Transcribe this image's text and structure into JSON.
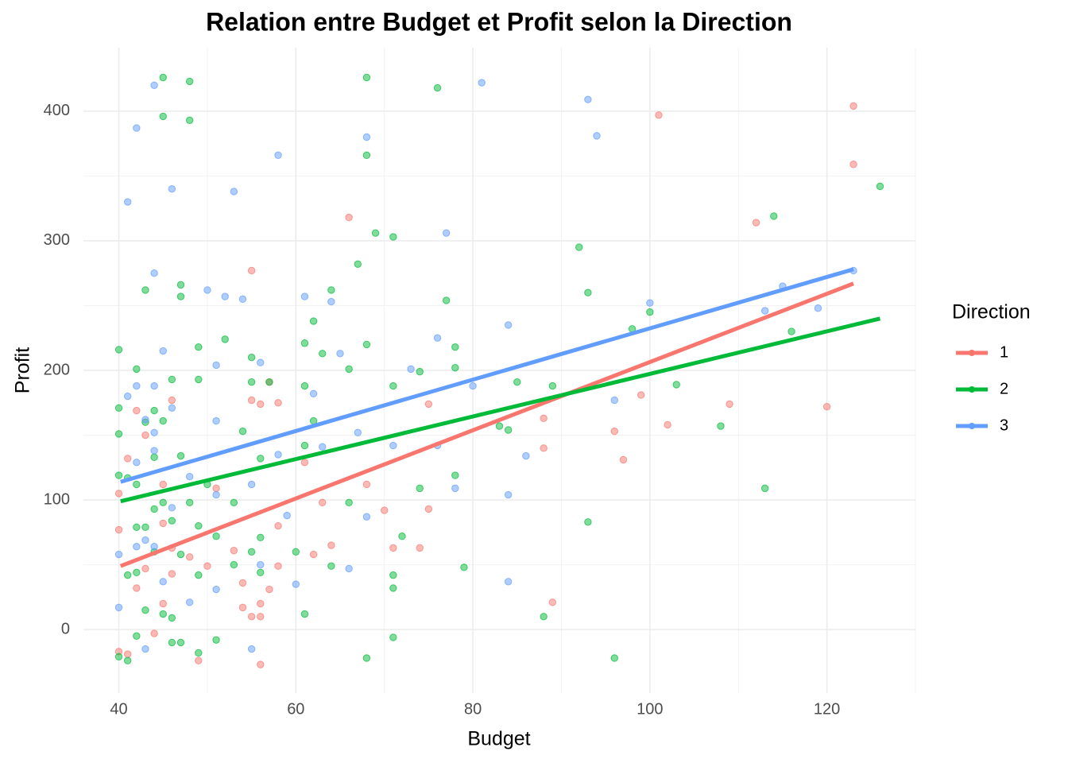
{
  "chart_data": {
    "type": "scatter",
    "title": "Relation entre Budget et Profit selon la Direction",
    "x_label": "Budget",
    "y_label": "Profit",
    "legend_title": "Direction",
    "xlim": [
      36,
      130
    ],
    "ylim": [
      -49,
      449
    ],
    "xticks": [
      40,
      60,
      80,
      100,
      120
    ],
    "yticks": [
      0,
      100,
      200,
      300,
      400
    ],
    "grid": true,
    "legend": "right",
    "series": [
      {
        "name": "1",
        "color": "#F8766D",
        "x": [
          40,
          40,
          40,
          41,
          41,
          42,
          42,
          43,
          43,
          44,
          45,
          45,
          45,
          46,
          46,
          46,
          48,
          49,
          50,
          51,
          53,
          54,
          54,
          55,
          55,
          55,
          56,
          56,
          56,
          56,
          57,
          57,
          58,
          58,
          58,
          61,
          62,
          63,
          64,
          66,
          68,
          70,
          71,
          74,
          75,
          75,
          89,
          88,
          88,
          96,
          97,
          99,
          101,
          102,
          109,
          112,
          120,
          123,
          123
        ],
        "y": [
          105,
          77,
          -17,
          132,
          -19,
          32,
          169,
          47,
          150,
          -3,
          20,
          112,
          82,
          177,
          63,
          43,
          56,
          -24,
          49,
          109,
          61,
          36,
          17,
          277,
          177,
          10,
          20,
          10,
          -27,
          174,
          191,
          31,
          175,
          80,
          49,
          129,
          58,
          98,
          65,
          318,
          112,
          92,
          63,
          63,
          93,
          174,
          21,
          163,
          140,
          153,
          131,
          181,
          397,
          158,
          174,
          314,
          172,
          404,
          359
        ],
        "trend": {
          "x": [
            40.2,
            123
          ],
          "y": [
            49,
            267
          ]
        }
      },
      {
        "name": "2",
        "color": "#00BA38",
        "x": [
          40,
          40,
          40,
          40,
          40,
          41,
          41,
          41,
          42,
          42,
          42,
          42,
          42,
          43,
          43,
          43,
          43,
          44,
          44,
          44,
          44,
          45,
          45,
          45,
          45,
          45,
          46,
          46,
          46,
          46,
          47,
          47,
          47,
          47,
          47,
          48,
          48,
          48,
          49,
          49,
          49,
          49,
          49,
          50,
          51,
          51,
          52,
          53,
          53,
          54,
          55,
          55,
          55,
          56,
          56,
          56,
          57,
          60,
          61,
          61,
          61,
          61,
          62,
          62,
          63,
          64,
          64,
          66,
          66,
          67,
          68,
          68,
          68,
          68,
          69,
          71,
          71,
          71,
          71,
          71,
          72,
          74,
          74,
          76,
          77,
          78,
          78,
          78,
          79,
          83,
          84,
          85,
          88,
          89,
          92,
          93,
          93,
          96,
          98,
          100,
          103,
          108,
          113,
          114,
          116,
          126
        ],
        "y": [
          216,
          171,
          151,
          119,
          -21,
          117,
          42,
          -24,
          201,
          112,
          79,
          44,
          -5,
          262,
          160,
          79,
          15,
          169,
          133,
          93,
          60,
          426,
          396,
          161,
          98,
          12,
          193,
          84,
          9,
          -10,
          266,
          257,
          134,
          58,
          -10,
          423,
          393,
          98,
          218,
          193,
          80,
          42,
          -18,
          112,
          72,
          -8,
          224,
          98,
          50,
          153,
          210,
          191,
          60,
          132,
          71,
          44,
          191,
          60,
          221,
          188,
          142,
          12,
          238,
          161,
          213,
          262,
          49,
          201,
          98,
          282,
          426,
          366,
          220,
          -22,
          306,
          303,
          188,
          42,
          32,
          -6,
          72,
          199,
          109,
          418,
          254,
          218,
          202,
          119,
          48,
          157,
          154,
          191,
          10,
          188,
          295,
          260,
          83,
          -22,
          232,
          245,
          189,
          157,
          109,
          319,
          230,
          342
        ],
        "trend": {
          "x": [
            40.2,
            126
          ],
          "y": [
            99,
            240
          ]
        }
      },
      {
        "name": "3",
        "color": "#619CFF",
        "x": [
          40,
          40,
          41,
          41,
          42,
          42,
          42,
          42,
          43,
          43,
          43,
          44,
          44,
          44,
          44,
          44,
          44,
          45,
          45,
          46,
          46,
          46,
          48,
          48,
          50,
          51,
          51,
          51,
          51,
          52,
          53,
          54,
          55,
          55,
          56,
          56,
          58,
          58,
          59,
          60,
          61,
          62,
          63,
          64,
          65,
          66,
          67,
          68,
          68,
          71,
          73,
          76,
          76,
          77,
          78,
          80,
          81,
          84,
          84,
          84,
          86,
          93,
          94,
          96,
          100,
          113,
          115,
          119,
          123
        ],
        "y": [
          58,
          17,
          330,
          180,
          387,
          188,
          129,
          64,
          162,
          69,
          -15,
          420,
          275,
          188,
          152,
          138,
          64,
          215,
          37,
          340,
          171,
          94,
          118,
          21,
          262,
          204,
          161,
          104,
          31,
          257,
          338,
          255,
          -15,
          112,
          206,
          50,
          366,
          135,
          88,
          35,
          257,
          182,
          141,
          253,
          213,
          47,
          152,
          380,
          87,
          142,
          201,
          225,
          142,
          306,
          109,
          188,
          422,
          235,
          104,
          37,
          134,
          409,
          381,
          177,
          252,
          246,
          265,
          248,
          277
        ],
        "trend": {
          "x": [
            40.2,
            123
          ],
          "y": [
            114,
            278
          ]
        }
      }
    ]
  }
}
